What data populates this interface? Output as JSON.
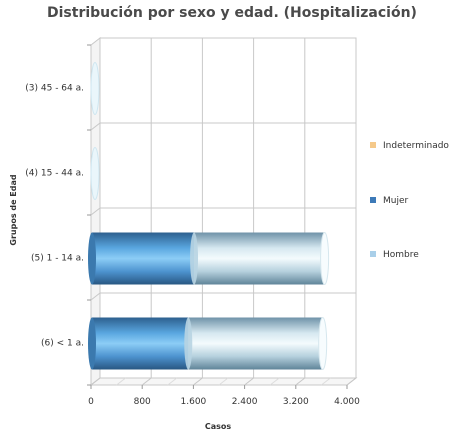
{
  "chart_data": {
    "type": "bar",
    "orientation": "horizontal",
    "stacked": true,
    "three_d": true,
    "title": "Distribución por sexo y edad. (Hospitalización)",
    "xlabel": "Casos",
    "ylabel": "Grupos de Edad",
    "categories": [
      "(3) 45 - 64 a.",
      "(4) 15 - 44 a.",
      "(5) 1 - 14 a.",
      "(6) < 1 a."
    ],
    "xlim": [
      0,
      4000
    ],
    "x_ticks": [
      0,
      800,
      1600,
      2400,
      3200,
      4000
    ],
    "x_tick_labels": [
      "0",
      "800",
      "1.600",
      "2.400",
      "3.200",
      "4.000"
    ],
    "series": [
      {
        "name": "Hombre",
        "color": "#a9cfe9",
        "values": [
          1,
          1,
          1610,
          1520
        ]
      },
      {
        "name": "Mujer",
        "color": "#3d7ab8",
        "values": [
          1,
          1,
          2040,
          2100
        ]
      },
      {
        "name": "Indeterminado",
        "color": "#f5c98a",
        "values": [
          0,
          0,
          0,
          0
        ]
      }
    ],
    "legend_position": "right",
    "grid": true
  }
}
